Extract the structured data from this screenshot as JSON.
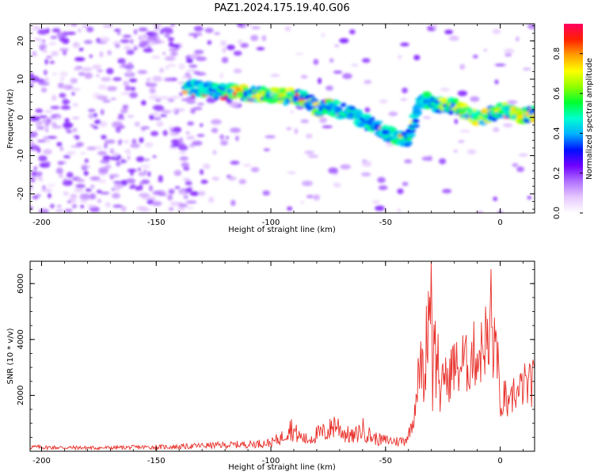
{
  "title": "PAZ1.2024.175.19.40.G06",
  "chart_data": [
    {
      "type": "heatmap",
      "xlabel": "Height of straight line (km)",
      "ylabel": "Frequency (Hz)",
      "xlim": [
        -205,
        15
      ],
      "ylim": [
        -25,
        24.5
      ],
      "xticks": [
        -200,
        -150,
        -100,
        -50,
        0
      ],
      "xtick_labels": [
        "-200",
        "-150",
        "-100",
        "-50",
        "0"
      ],
      "yticks": [
        -20,
        -10,
        0,
        10,
        20
      ],
      "ytick_labels": [
        "-20",
        "-10",
        "0",
        "10",
        "20"
      ],
      "colorbar": {
        "label": "Normalized spectral amplitude",
        "range": [
          0,
          0.95
        ],
        "ticks": [
          0.0,
          0.2,
          0.4,
          0.6,
          0.8
        ],
        "tick_labels": [
          "0.0",
          "0.2",
          "0.4",
          "0.6",
          "0.8"
        ],
        "colors": [
          "#ffffff",
          "#e6c8ff",
          "#b070ff",
          "#7000ff",
          "#0010ff",
          "#00b0ff",
          "#00ffd0",
          "#00ff30",
          "#90ff00",
          "#ffff00",
          "#ffa000",
          "#ff2000",
          "#ff0060"
        ]
      },
      "ridge": {
        "x": [
          -135,
          -125,
          -115,
          -105,
          -95,
          -85,
          -80,
          -75,
          -70,
          -65,
          -60,
          -55,
          -50,
          -45,
          -40,
          -35,
          -30,
          -25,
          -20,
          -15,
          -10,
          -5,
          0,
          5,
          10,
          15
        ],
        "y": [
          8,
          7,
          6.5,
          6,
          5.5,
          5,
          2,
          3,
          2,
          1,
          -1,
          -2,
          -4,
          -5,
          -6,
          5,
          4,
          3,
          3,
          1,
          0,
          0.5,
          2,
          1,
          0.5,
          1
        ]
      }
    },
    {
      "type": "line",
      "xlabel": "Height of straight line (km)",
      "ylabel": "SNR (10 * v/v)",
      "xlim": [
        -205,
        15
      ],
      "ylim": [
        0,
        6800
      ],
      "xticks": [
        -200,
        -150,
        -100,
        -50,
        0
      ],
      "xtick_labels": [
        "-200",
        "-150",
        "-100",
        "-50",
        "0"
      ],
      "yticks": [
        2000,
        4000,
        6000
      ],
      "ytick_labels": [
        "2000",
        "4000",
        "6000"
      ],
      "color": "#e8302a",
      "x": [
        -205,
        -190,
        -175,
        -160,
        -140,
        -130,
        -120,
        -110,
        -100,
        -95,
        -92,
        -88,
        -84,
        -80,
        -75,
        -72,
        -68,
        -64,
        -60,
        -56,
        -52,
        -48,
        -45,
        -42,
        -40,
        -38,
        -36,
        -34,
        -33,
        -32,
        -31,
        -30,
        -29.5,
        -29,
        -28,
        -27,
        -26,
        -25,
        -24,
        -23,
        -22,
        -21,
        -20,
        -18,
        -16,
        -14,
        -12,
        -10,
        -8,
        -6,
        -5,
        -4,
        -3,
        -2,
        -1,
        0,
        1,
        2,
        4,
        6,
        8,
        10,
        12,
        15
      ],
      "y": [
        150,
        130,
        120,
        140,
        160,
        200,
        220,
        250,
        300,
        500,
        900,
        550,
        400,
        600,
        700,
        1000,
        650,
        500,
        800,
        500,
        400,
        380,
        350,
        380,
        600,
        1100,
        2500,
        3200,
        2000,
        4500,
        5200,
        6700,
        1500,
        5800,
        2800,
        3500,
        1500,
        2600,
        3100,
        2200,
        2800,
        3000,
        3100,
        2900,
        3300,
        3000,
        3500,
        3400,
        3600,
        4200,
        3200,
        5400,
        3300,
        4000,
        3700,
        900,
        1800,
        2000,
        1400,
        2200,
        2000,
        2400,
        2300,
        2500
      ]
    }
  ]
}
